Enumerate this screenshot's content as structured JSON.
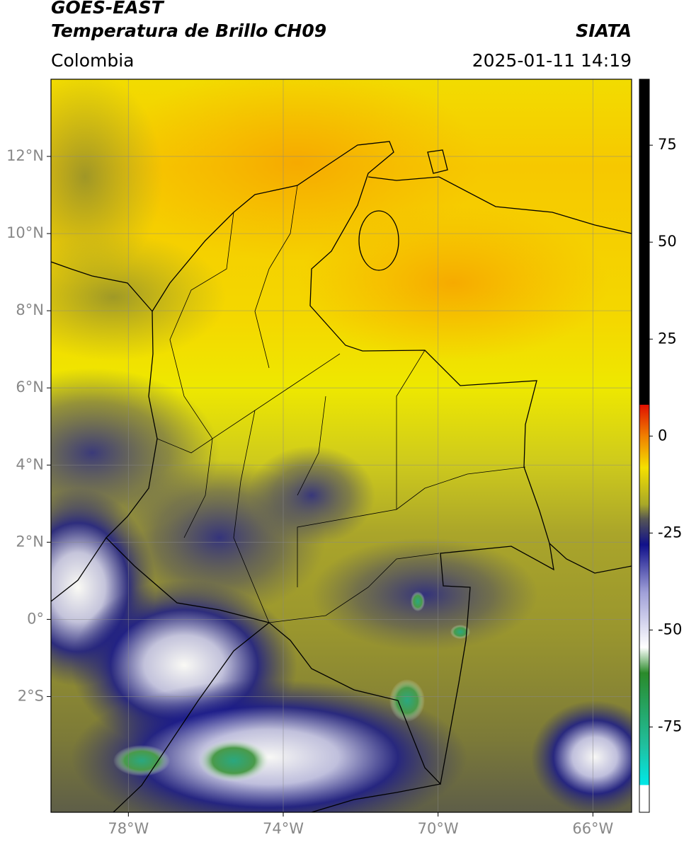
{
  "header": {
    "title": "GOES-EAST",
    "subtitle": "Temperatura de Brillo CH09",
    "agency": "SIATA",
    "region": "Colombia",
    "datetime": "2025-01-11 14:19"
  },
  "map": {
    "xlim": [
      -80,
      -65
    ],
    "ylim": [
      -5,
      14
    ],
    "xticks": [
      {
        "value": -78,
        "label": "78°W"
      },
      {
        "value": -74,
        "label": "74°W"
      },
      {
        "value": -70,
        "label": "70°W"
      },
      {
        "value": -66,
        "label": "66°W"
      }
    ],
    "yticks": [
      {
        "value": 12,
        "label": "12°N"
      },
      {
        "value": 10,
        "label": "10°N"
      },
      {
        "value": 8,
        "label": "8°N"
      },
      {
        "value": 6,
        "label": "6°N"
      },
      {
        "value": 4,
        "label": "4°N"
      },
      {
        "value": 2,
        "label": "2°N"
      },
      {
        "value": 0,
        "label": "0°"
      },
      {
        "value": -2,
        "label": "2°S"
      }
    ],
    "grid": true
  },
  "colorbar": {
    "clim": [
      -97,
      92
    ],
    "ticks": [
      75,
      50,
      25,
      0,
      -25,
      -50,
      -75
    ]
  }
}
